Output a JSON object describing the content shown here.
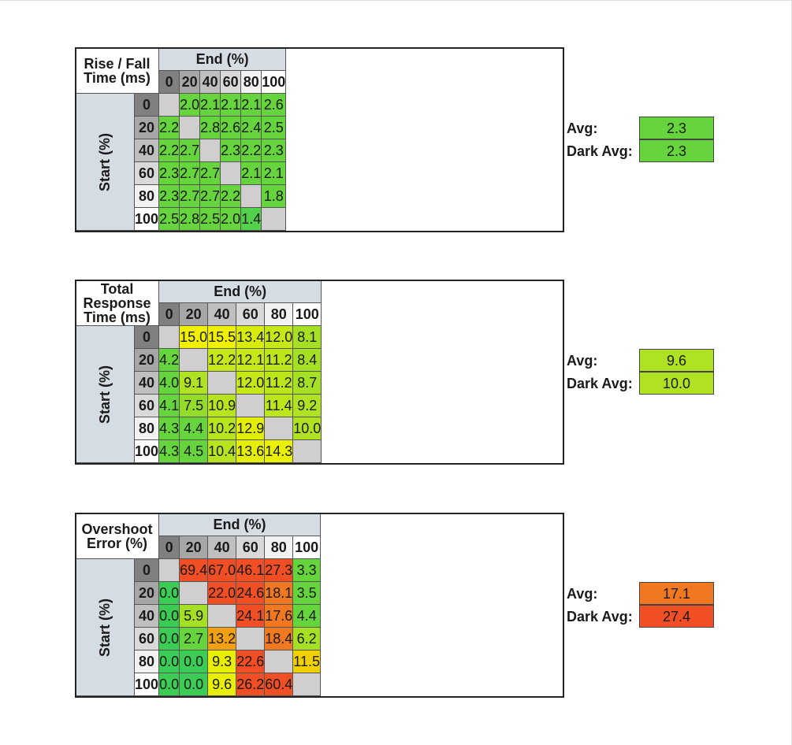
{
  "tables": [
    {
      "key": "rise_fall",
      "title_lines": [
        "Rise / Fall",
        "Time (ms)"
      ],
      "end_label": "End (%)",
      "start_label": "Start (%)",
      "columns": [
        "0",
        "20",
        "40",
        "60",
        "80",
        "100"
      ],
      "rows": [
        "0",
        "20",
        "40",
        "60",
        "80",
        "100"
      ],
      "header_colors": [
        "#808080",
        "#a6a6a6",
        "#bfbfbf",
        "#d9d9d9",
        "#f2f2f2",
        "#ffffff"
      ],
      "values": [
        [
          null,
          "2.0",
          "2.1",
          "2.1",
          "2.1",
          "2.6"
        ],
        [
          "2.2",
          null,
          "2.8",
          "2.6",
          "2.4",
          "2.5"
        ],
        [
          "2.2",
          "2.7",
          null,
          "2.3",
          "2.2",
          "2.3"
        ],
        [
          "2.3",
          "2.7",
          "2.7",
          null,
          "2.1",
          "2.1"
        ],
        [
          "2.3",
          "2.7",
          "2.7",
          "2.2",
          null,
          "1.8"
        ],
        [
          "2.5",
          "2.8",
          "2.5",
          "2.0",
          "1.4",
          null
        ]
      ],
      "colors": [
        [
          null,
          "#66d43c",
          "#66d43c",
          "#66d43c",
          "#66d43c",
          "#66d43c"
        ],
        [
          "#66d43c",
          null,
          "#66d43c",
          "#66d43c",
          "#66d43c",
          "#66d43c"
        ],
        [
          "#66d43c",
          "#66d43c",
          null,
          "#66d43c",
          "#66d43c",
          "#66d43c"
        ],
        [
          "#66d43c",
          "#66d43c",
          "#66d43c",
          null,
          "#66d43c",
          "#66d43c"
        ],
        [
          "#66d43c",
          "#66d43c",
          "#66d43c",
          "#66d43c",
          null,
          "#66d43c"
        ],
        [
          "#66d43c",
          "#66d43c",
          "#66d43c",
          "#66d43c",
          "#52d14a",
          null
        ]
      ],
      "avg_label": "Avg:",
      "avg_value": "2.3",
      "avg_color": "#66d43c",
      "dark_avg_label": "Dark Avg:",
      "dark_avg_value": "2.3",
      "dark_avg_color": "#66d43c"
    },
    {
      "key": "total_response",
      "title_lines": [
        "Total Response",
        "Time (ms)"
      ],
      "end_label": "End (%)",
      "start_label": "Start (%)",
      "columns": [
        "0",
        "20",
        "40",
        "60",
        "80",
        "100"
      ],
      "rows": [
        "0",
        "20",
        "40",
        "60",
        "80",
        "100"
      ],
      "header_colors": [
        "#808080",
        "#a6a6a6",
        "#bfbfbf",
        "#d9d9d9",
        "#f2f2f2",
        "#ffffff"
      ],
      "values": [
        [
          null,
          "15.0",
          "15.5",
          "13.4",
          "12.0",
          "8.1"
        ],
        [
          "4.2",
          null,
          "12.2",
          "12.1",
          "11.2",
          "8.4"
        ],
        [
          "4.0",
          "9.1",
          null,
          "12.0",
          "11.2",
          "8.7"
        ],
        [
          "4.1",
          "7.5",
          "10.9",
          null,
          "11.4",
          "9.2"
        ],
        [
          "4.3",
          "4.4",
          "10.2",
          "12.9",
          null,
          "10.0"
        ],
        [
          "4.3",
          "4.5",
          "10.4",
          "13.6",
          "14.3",
          null
        ]
      ],
      "colors": [
        [
          null,
          "#f0f000",
          "#eef000",
          "#d7ec0a",
          "#c6e818",
          "#a6e024"
        ],
        [
          "#66d43c",
          null,
          "#c6e818",
          "#c6e818",
          "#bde61a",
          "#a6e024"
        ],
        [
          "#66d43c",
          "#aee222",
          null,
          "#c6e818",
          "#bde61a",
          "#a6e024"
        ],
        [
          "#66d43c",
          "#94dc2a",
          "#b8e41e",
          null,
          "#bde61a",
          "#aee222"
        ],
        [
          "#66d43c",
          "#66d43c",
          "#b6e41e",
          "#e2ee06",
          null,
          "#b0e222"
        ],
        [
          "#66d43c",
          "#66d43c",
          "#b6e41e",
          "#e4ee06",
          "#eaf002",
          null
        ]
      ],
      "avg_label": "Avg:",
      "avg_value": "9.6",
      "avg_color": "#aee222",
      "dark_avg_label": "Dark Avg:",
      "dark_avg_value": "10.0",
      "dark_avg_color": "#b0e222"
    },
    {
      "key": "overshoot",
      "title_lines": [
        "Overshoot",
        "Error (%)"
      ],
      "end_label": "End (%)",
      "start_label": "Start (%)",
      "columns": [
        "0",
        "20",
        "40",
        "60",
        "80",
        "100"
      ],
      "rows": [
        "0",
        "20",
        "40",
        "60",
        "80",
        "100"
      ],
      "header_colors": [
        "#808080",
        "#a6a6a6",
        "#bfbfbf",
        "#d9d9d9",
        "#f2f2f2",
        "#ffffff"
      ],
      "values": [
        [
          null,
          "69.4",
          "67.0",
          "46.1",
          "27.3",
          "3.3"
        ],
        [
          "0.0",
          null,
          "22.0",
          "24.6",
          "18.1",
          "3.5"
        ],
        [
          "0.0",
          "5.9",
          null,
          "24.1",
          "17.6",
          "4.4"
        ],
        [
          "0.0",
          "2.7",
          "13.2",
          null,
          "18.4",
          "6.2"
        ],
        [
          "0.0",
          "0.0",
          "9.3",
          "22.6",
          null,
          "11.5"
        ],
        [
          "0.0",
          "0.0",
          "9.6",
          "26.2",
          "60.4",
          null
        ]
      ],
      "colors": [
        [
          null,
          "#f04e24",
          "#f04e24",
          "#f04e24",
          "#f04e24",
          "#66d43c"
        ],
        [
          "#3ccc55",
          null,
          "#f04e24",
          "#f04e24",
          "#f07820",
          "#66d43c"
        ],
        [
          "#3ccc55",
          "#a6e024",
          null,
          "#f04e24",
          "#f07820",
          "#66d43c"
        ],
        [
          "#3ccc55",
          "#66d43c",
          "#f0a010",
          null,
          "#f07820",
          "#a6e024"
        ],
        [
          "#3ccc55",
          "#3ccc55",
          "#e8ee04",
          "#f04e24",
          null,
          "#f0d000"
        ],
        [
          "#3ccc55",
          "#3ccc55",
          "#e8ee04",
          "#f04e24",
          "#f04e24",
          null
        ]
      ],
      "avg_label": "Avg:",
      "avg_value": "17.1",
      "avg_color": "#f07820",
      "dark_avg_label": "Dark Avg:",
      "dark_avg_value": "27.4",
      "dark_avg_color": "#f04e24"
    }
  ],
  "chart_data": [
    {
      "type": "heatmap",
      "title": "Rise / Fall Time (ms)",
      "xlabel": "End (%)",
      "ylabel": "Start (%)",
      "x": [
        0,
        20,
        40,
        60,
        80,
        100
      ],
      "y": [
        0,
        20,
        40,
        60,
        80,
        100
      ],
      "values": [
        [
          null,
          2.0,
          2.1,
          2.1,
          2.1,
          2.6
        ],
        [
          2.2,
          null,
          2.8,
          2.6,
          2.4,
          2.5
        ],
        [
          2.2,
          2.7,
          null,
          2.3,
          2.2,
          2.3
        ],
        [
          2.3,
          2.7,
          2.7,
          null,
          2.1,
          2.1
        ],
        [
          2.3,
          2.7,
          2.7,
          2.2,
          null,
          1.8
        ],
        [
          2.5,
          2.8,
          2.5,
          2.0,
          1.4,
          null
        ]
      ],
      "avg": 2.3,
      "dark_avg": 2.3
    },
    {
      "type": "heatmap",
      "title": "Total Response Time (ms)",
      "xlabel": "End (%)",
      "ylabel": "Start (%)",
      "x": [
        0,
        20,
        40,
        60,
        80,
        100
      ],
      "y": [
        0,
        20,
        40,
        60,
        80,
        100
      ],
      "values": [
        [
          null,
          15.0,
          15.5,
          13.4,
          12.0,
          8.1
        ],
        [
          4.2,
          null,
          12.2,
          12.1,
          11.2,
          8.4
        ],
        [
          4.0,
          9.1,
          null,
          12.0,
          11.2,
          8.7
        ],
        [
          4.1,
          7.5,
          10.9,
          null,
          11.4,
          9.2
        ],
        [
          4.3,
          4.4,
          10.2,
          12.9,
          null,
          10.0
        ],
        [
          4.3,
          4.5,
          10.4,
          13.6,
          14.3,
          null
        ]
      ],
      "avg": 9.6,
      "dark_avg": 10.0
    },
    {
      "type": "heatmap",
      "title": "Overshoot Error (%)",
      "xlabel": "End (%)",
      "ylabel": "Start (%)",
      "x": [
        0,
        20,
        40,
        60,
        80,
        100
      ],
      "y": [
        0,
        20,
        40,
        60,
        80,
        100
      ],
      "values": [
        [
          null,
          69.4,
          67.0,
          46.1,
          27.3,
          3.3
        ],
        [
          0.0,
          null,
          22.0,
          24.6,
          18.1,
          3.5
        ],
        [
          0.0,
          5.9,
          null,
          24.1,
          17.6,
          4.4
        ],
        [
          0.0,
          2.7,
          13.2,
          null,
          18.4,
          6.2
        ],
        [
          0.0,
          0.0,
          9.3,
          22.6,
          null,
          11.5
        ],
        [
          0.0,
          0.0,
          9.6,
          26.2,
          60.4,
          null
        ]
      ],
      "avg": 17.1,
      "dark_avg": 27.4
    }
  ]
}
